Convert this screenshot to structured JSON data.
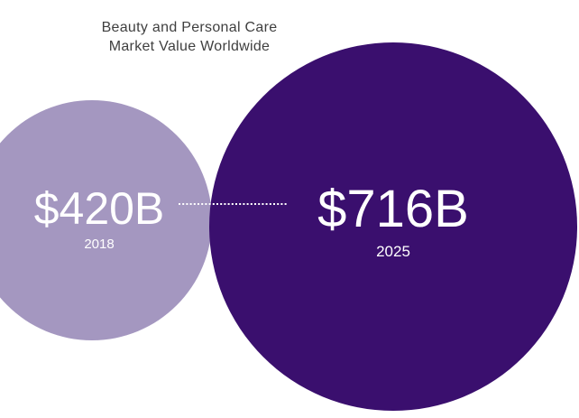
{
  "chart_data": {
    "type": "bubble",
    "title_lines": [
      "Beauty and Personal Care",
      "Market Value Worldwide"
    ],
    "unit_prefix": "$",
    "unit_suffix": "B",
    "points": [
      {
        "year": "2018",
        "value": 420,
        "label": "$420B",
        "color": "#a497c0"
      },
      {
        "year": "2025",
        "value": 716,
        "label": "$716B",
        "color": "#3a0f6e"
      }
    ],
    "connector": "dotted"
  }
}
